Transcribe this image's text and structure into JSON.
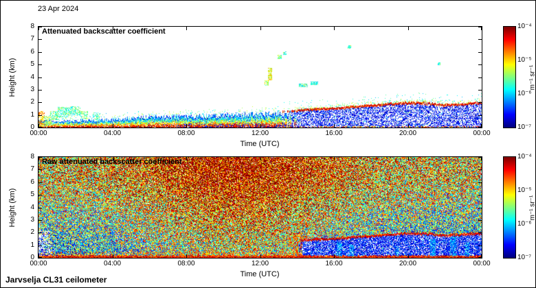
{
  "page": {
    "date_label": "23 Apr 2024",
    "footer_label": "Jarvselja CL31 ceilometer",
    "background_color": "#ffffff",
    "frame_color": "#000000"
  },
  "chart_data": [
    {
      "type": "heatmap",
      "title": "Attenuated backscatter coefficient",
      "xlabel": "Time (UTC)",
      "ylabel": "Height (km)",
      "xlim_hours": [
        0,
        24
      ],
      "ylim_km": [
        0,
        8
      ],
      "x_tick_hours": [
        0,
        4,
        8,
        12,
        16,
        20,
        24
      ],
      "x_tick_labels": [
        "00:00",
        "04:00",
        "08:00",
        "12:00",
        "16:00",
        "20:00",
        "00:00"
      ],
      "y_tick_values": [
        0,
        1,
        2,
        3,
        4,
        5,
        6,
        7,
        8
      ],
      "y_tick_labels": [
        "0",
        "1",
        "2",
        "3",
        "4",
        "5",
        "6",
        "7",
        "8"
      ],
      "grid": false,
      "colorbar": {
        "label": "m⁻¹ sr⁻¹",
        "scale": "log",
        "min": 1e-07,
        "max": 0.0001,
        "tick_labels": [
          "10⁻⁴",
          "10⁻⁵",
          "10⁻⁶",
          "10⁻⁷"
        ],
        "colormap": "jet",
        "position": "right"
      },
      "summary": "Aerosol boundary layer below ~1 km until ~13:30 UTC (red near surface, green fringe above); after ~14:00 sparse blue noise below an elevated red residual-layer line rising from ~1.3 km to ~2 km; isolated cloud specks at 3-6.5 km between 12:30 and 17:00; remainder clear (white)."
    },
    {
      "type": "heatmap",
      "title": "Raw attenuated backscatter coefficient",
      "xlabel": "Time (UTC)",
      "ylabel": "Height (km)",
      "xlim_hours": [
        0,
        24
      ],
      "ylim_km": [
        0,
        8
      ],
      "x_tick_hours": [
        0,
        4,
        8,
        12,
        16,
        20,
        24
      ],
      "x_tick_labels": [
        "00:00",
        "04:00",
        "08:00",
        "12:00",
        "16:00",
        "20:00",
        "00:00"
      ],
      "y_tick_values": [
        0,
        1,
        2,
        3,
        4,
        5,
        6,
        7,
        8
      ],
      "y_tick_labels": [
        "0",
        "1",
        "2",
        "3",
        "4",
        "5",
        "6",
        "7",
        "8"
      ],
      "grid": false,
      "colorbar": {
        "label": "m⁻¹ sr⁻¹",
        "scale": "log",
        "min": 1e-07,
        "max": 0.0001,
        "tick_labels": [
          "10⁻⁴",
          "10⁻⁵",
          "10⁻⁶",
          "10⁻⁷"
        ],
        "colormap": "jet",
        "position": "right"
      },
      "summary": "Full-field solar background noise: blue/green at low altitude grading to yellow/red aloft, strongest (red) 06:00-15:00; red surface band along the bottom; after ~14:00 the same elevated red layer line with blue noise below it; sparse white/blue patch near 00:00 below ~2 km; bright cyan columns near the surface in the evening."
    }
  ],
  "scene": {
    "seed": 20240423,
    "transition_hour": 13.6,
    "boundary_layer_top_km": [
      [
        0,
        0.5
      ],
      [
        2,
        0.5
      ],
      [
        4,
        0.6
      ],
      [
        5,
        0.7
      ],
      [
        6,
        0.8
      ],
      [
        8,
        0.85
      ],
      [
        10,
        0.95
      ],
      [
        12,
        1.05
      ],
      [
        13.6,
        1.15
      ]
    ],
    "residual_layer_top_km": [
      [
        13.6,
        1.3
      ],
      [
        15,
        1.45
      ],
      [
        16,
        1.5
      ],
      [
        17,
        1.62
      ],
      [
        18,
        1.72
      ],
      [
        19,
        1.85
      ],
      [
        20,
        1.95
      ],
      [
        21,
        1.9
      ],
      [
        22,
        1.75
      ],
      [
        23,
        1.85
      ],
      [
        24,
        1.92
      ]
    ],
    "clouds": [
      {
        "t": 12.55,
        "h": 4.25,
        "dt": 0.1,
        "dh": 0.45,
        "v": 0.62
      },
      {
        "t": 12.35,
        "h": 3.55,
        "dt": 0.08,
        "dh": 0.18,
        "v": 0.55
      },
      {
        "t": 13.05,
        "h": 5.6,
        "dt": 0.1,
        "dh": 0.15,
        "v": 0.5
      },
      {
        "t": 13.35,
        "h": 5.9,
        "dt": 0.07,
        "dh": 0.1,
        "v": 0.45
      },
      {
        "t": 14.35,
        "h": 3.35,
        "dt": 0.22,
        "dh": 0.1,
        "v": 0.42
      },
      {
        "t": 14.95,
        "h": 3.5,
        "dt": 0.18,
        "dh": 0.1,
        "v": 0.4
      },
      {
        "t": 16.85,
        "h": 6.4,
        "dt": 0.08,
        "dh": 0.1,
        "v": 0.45
      },
      {
        "t": 21.7,
        "h": 5.05,
        "dt": 0.06,
        "dh": 0.08,
        "v": 0.4
      }
    ],
    "morning_plumes": [
      {
        "t": 0.18,
        "h": 0.65,
        "dt": 0.15,
        "dh": 0.65,
        "v": 0.72
      },
      {
        "t": 0.5,
        "h": 0.5,
        "dt": 0.2,
        "dh": 0.4,
        "v": 0.55
      },
      {
        "t": 0.85,
        "h": 0.95,
        "dt": 0.22,
        "dh": 0.35,
        "v": 0.48
      },
      {
        "t": 1.35,
        "h": 1.2,
        "dt": 0.28,
        "dh": 0.38,
        "v": 0.45
      },
      {
        "t": 1.95,
        "h": 1.35,
        "dt": 0.3,
        "dh": 0.33,
        "v": 0.45
      },
      {
        "t": 2.45,
        "h": 1.0,
        "dt": 0.2,
        "dh": 0.3,
        "v": 0.5
      },
      {
        "t": 3.15,
        "h": 0.9,
        "dt": 0.18,
        "dh": 0.28,
        "v": 0.45
      }
    ],
    "evening_cyan_columns": [
      {
        "t": 16.3,
        "dt": 0.12,
        "h_top": 1.3
      },
      {
        "t": 16.95,
        "dt": 0.1,
        "h_top": 1.05
      },
      {
        "t": 19.4,
        "dt": 0.08,
        "h_top": 0.9
      },
      {
        "t": 21.35,
        "dt": 0.12,
        "h_top": 1.5
      },
      {
        "t": 22.45,
        "dt": 0.15,
        "h_top": 1.6
      },
      {
        "t": 23.2,
        "dt": 0.1,
        "h_top": 1.15
      }
    ]
  }
}
